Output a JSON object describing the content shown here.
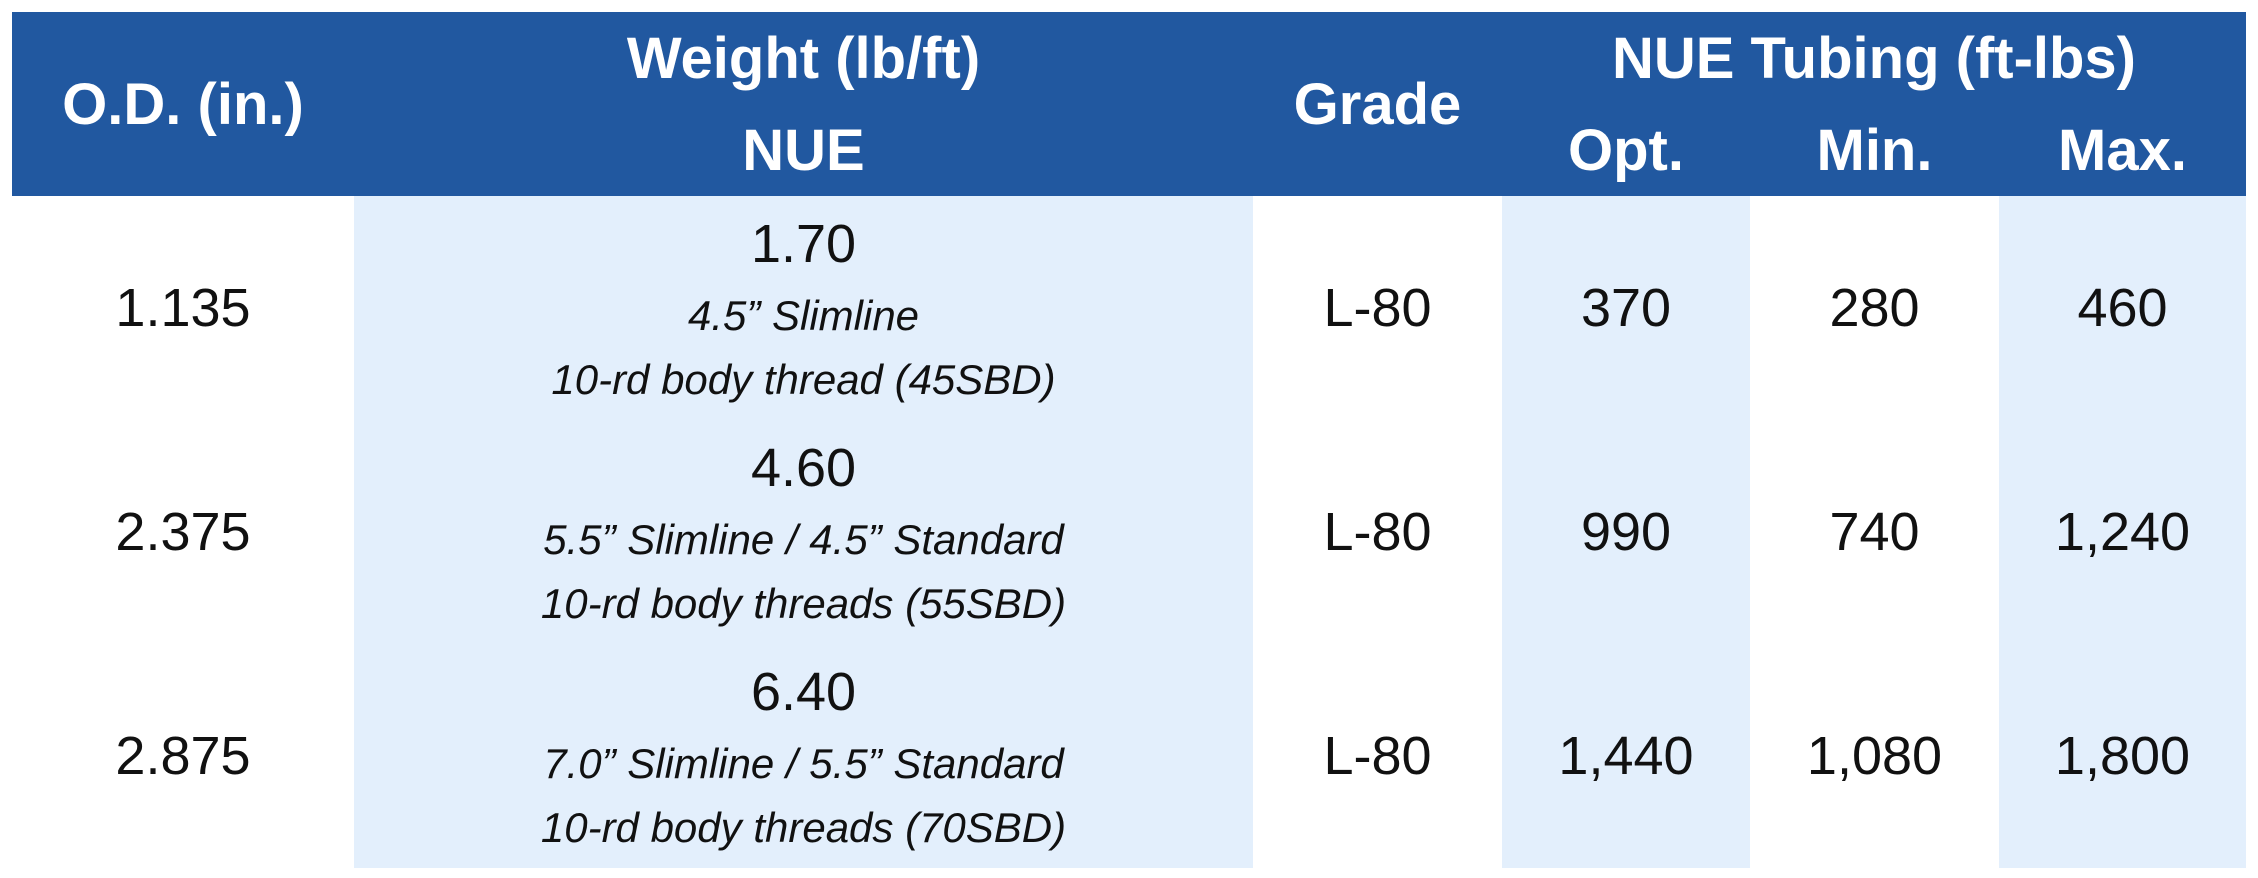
{
  "header": {
    "od": "O.D. (in.)",
    "weight": "Weight (lb/ft)",
    "weight_sub": "NUE",
    "grade": "Grade",
    "tubing": "NUE Tubing (ft-lbs)",
    "opt": "Opt.",
    "min": "Min.",
    "max": "Max."
  },
  "rows": [
    {
      "od": "1.135",
      "weight": "1.70",
      "weight_notes": [
        "4.5” Slimline",
        "10-rd body thread (45SBD)"
      ],
      "grade": "L-80",
      "opt": "370",
      "min": "280",
      "max": "460"
    },
    {
      "od": "2.375",
      "weight": "4.60",
      "weight_notes": [
        "5.5” Slimline / 4.5” Standard",
        "10-rd body threads (55SBD)"
      ],
      "grade": "L-80",
      "opt": "990",
      "min": "740",
      "max": "1,240"
    },
    {
      "od": "2.875",
      "weight": "6.40",
      "weight_notes": [
        "7.0” Slimline / 5.5” Standard",
        "10-rd body threads (70SBD)"
      ],
      "grade": "L-80",
      "opt": "1,440",
      "min": "1,080",
      "max": "1,800"
    }
  ]
}
